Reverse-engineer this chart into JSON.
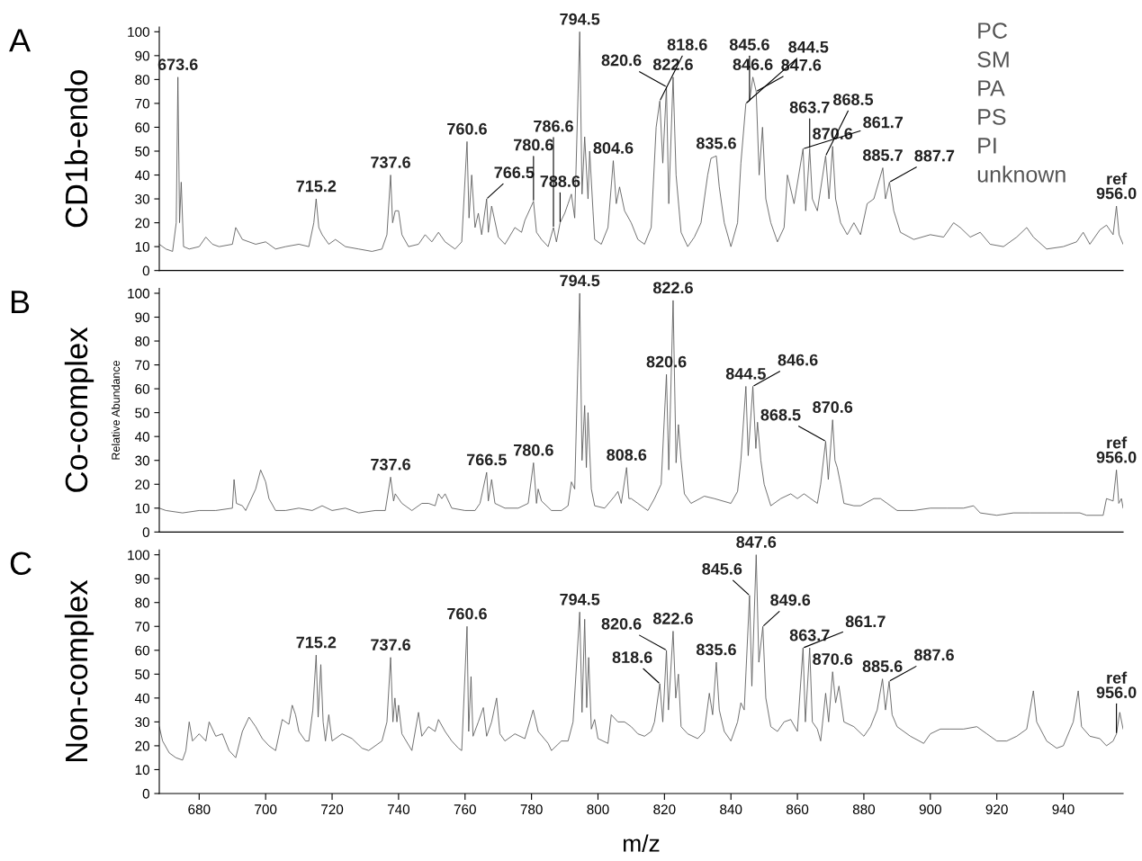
{
  "chart_data": [
    {
      "type": "line",
      "title": "A",
      "xlim": [
        668,
        958
      ],
      "ylim": [
        0,
        102
      ],
      "xticks": [
        680,
        700,
        720,
        740,
        760,
        780,
        800,
        820,
        840,
        860,
        880,
        900,
        920,
        940
      ],
      "yticks": [
        0,
        10,
        20,
        30,
        40,
        50,
        60,
        70,
        80,
        90,
        100
      ],
      "tick_labels": "y",
      "grid": false,
      "series": [
        {
          "color": "#555555",
          "x": [
            668,
            670,
            672,
            673.1,
            673.6,
            674.1,
            674.6,
            675.3,
            677,
            680,
            682,
            684,
            686,
            690,
            691,
            693,
            697,
            700,
            703,
            706,
            710,
            713,
            714.5,
            715.2,
            716,
            717,
            719,
            721,
            724,
            728,
            732,
            735,
            736.5,
            737.6,
            738.2,
            739,
            740,
            741,
            743,
            746,
            748,
            750,
            752,
            754,
            757,
            759,
            760.6,
            761.2,
            762,
            763,
            764,
            765,
            766.5,
            767,
            768,
            770,
            772,
            775,
            777,
            778,
            780.6,
            781.5,
            783,
            785,
            786.6,
            787.5,
            788.6,
            790,
            791,
            792,
            793,
            794.5,
            795.2,
            796,
            797,
            797.5,
            798.5,
            799,
            801,
            803,
            804.6,
            805.5,
            806.5,
            808,
            810,
            812,
            814,
            816,
            817.5,
            818.6,
            819.5,
            820.6,
            821.3,
            822.6,
            823.5,
            825,
            827,
            829,
            831,
            833,
            834,
            835.6,
            836.5,
            838,
            840,
            842,
            843,
            844.5,
            845.6,
            846.6,
            847.6,
            848.5,
            849.5,
            850.5,
            852,
            854,
            856,
            857,
            859,
            861.7,
            862.5,
            863.7,
            864.5,
            866,
            868.5,
            869.5,
            870.6,
            871.5,
            873,
            875,
            877,
            879,
            881,
            883,
            885.7,
            886.5,
            887.7,
            889,
            891,
            895,
            900,
            904,
            907,
            909,
            912,
            915,
            918,
            922,
            926,
            929,
            931,
            935,
            940,
            944,
            946,
            948,
            951,
            953,
            955,
            956,
            956.8,
            958
          ],
          "values": [
            11,
            9,
            8,
            20,
            81,
            20,
            37,
            10,
            9,
            10,
            14,
            11,
            10,
            11,
            18,
            13,
            11,
            12,
            9,
            10,
            11,
            10,
            20,
            30,
            18,
            15,
            11,
            13,
            10,
            9,
            8,
            9,
            15,
            40,
            20,
            25,
            25,
            15,
            10,
            11,
            15,
            12,
            16,
            12,
            9,
            12,
            54,
            22,
            40,
            18,
            24,
            15,
            30,
            16,
            27,
            14,
            11,
            18,
            16,
            21,
            29,
            16,
            13,
            10,
            18,
            12,
            20,
            24,
            28,
            32,
            22,
            100,
            32,
            56,
            30,
            50,
            25,
            13,
            11,
            18,
            46,
            28,
            35,
            25,
            20,
            13,
            11,
            18,
            60,
            71,
            45,
            77,
            28,
            81,
            40,
            16,
            10,
            14,
            20,
            40,
            47,
            48,
            35,
            20,
            10,
            20,
            45,
            70,
            71,
            81,
            75,
            40,
            60,
            30,
            20,
            12,
            18,
            40,
            28,
            51,
            25,
            51,
            30,
            25,
            48,
            30,
            52,
            30,
            20,
            15,
            20,
            15,
            28,
            30,
            43,
            30,
            37,
            25,
            16,
            13,
            15,
            14,
            20,
            18,
            14,
            16,
            11,
            10,
            14,
            18,
            14,
            9,
            10,
            12,
            16,
            11,
            17,
            19,
            15,
            27,
            15,
            11
          ]
        }
      ],
      "annotations": [
        "CD1b-endo",
        "PC",
        "SM",
        "PA",
        "PS",
        "PI",
        "unknown",
        {
          "text": "794.5",
          "x": 794.5,
          "y": 100
        },
        {
          "text": "822.6",
          "x": 822.6,
          "y": 81
        },
        {
          "text": "846.6",
          "x": 846.6,
          "y": 81
        },
        {
          "text": "673.6",
          "x": 673.6,
          "y": 81
        },
        {
          "text": "820.6",
          "x": 820.6,
          "y": 77
        },
        {
          "text": "847.6",
          "x": 847.6,
          "y": 75
        },
        {
          "text": "845.6",
          "x": 845.6,
          "y": 71
        },
        {
          "text": "818.6",
          "x": 818.6,
          "y": 71
        },
        {
          "text": "844.5",
          "x": 844.5,
          "y": 70
        },
        {
          "text": "760.6",
          "x": 760.6,
          "y": 54
        },
        {
          "text": "870.6",
          "x": 870.6,
          "y": 52
        },
        {
          "text": "861.7",
          "x": 861.7,
          "y": 51
        },
        {
          "text": "863.7",
          "x": 863.7,
          "y": 51
        },
        {
          "text": "835.6",
          "x": 835.6,
          "y": 48
        },
        {
          "text": "868.5",
          "x": 868.5,
          "y": 48
        },
        {
          "text": "804.6",
          "x": 804.6,
          "y": 46
        },
        {
          "text": "885.7",
          "x": 885.7,
          "y": 43
        },
        {
          "text": "737.6",
          "x": 737.6,
          "y": 40
        },
        {
          "text": "887.7",
          "x": 887.7,
          "y": 37
        },
        {
          "text": "715.2",
          "x": 715.2,
          "y": 30
        },
        {
          "text": "766.5",
          "x": 766.5,
          "y": 30
        },
        {
          "text": "780.6",
          "x": 780.6,
          "y": 29
        },
        {
          "text": "ref\n956.0",
          "x": 956.0,
          "y": 27
        },
        {
          "text": "788.6",
          "x": 788.6,
          "y": 20
        },
        {
          "text": "786.6",
          "x": 786.6,
          "y": 18
        }
      ]
    },
    {
      "type": "line",
      "title": "B",
      "ylabel": "Relative Abundance",
      "xlim": [
        668,
        958
      ],
      "ylim": [
        0,
        102
      ],
      "xticks": [
        680,
        700,
        720,
        740,
        760,
        780,
        800,
        820,
        840,
        860,
        880,
        900,
        920,
        940
      ],
      "yticks": [
        0,
        10,
        20,
        30,
        40,
        50,
        60,
        70,
        80,
        90,
        100
      ],
      "tick_labels": "y",
      "grid": false,
      "series": [
        {
          "color": "#555555",
          "x": [
            668,
            670,
            675,
            680,
            685,
            690,
            690.5,
            691.2,
            693,
            694,
            697,
            698.5,
            700,
            701,
            703,
            706,
            710,
            714,
            717,
            720,
            724,
            728,
            733,
            736,
            737.6,
            738.5,
            739,
            741,
            744,
            747,
            749,
            751,
            752,
            753,
            754,
            756,
            760,
            763,
            764.5,
            766.5,
            767,
            768,
            769,
            772,
            776,
            779,
            780.6,
            781.5,
            782,
            783,
            786,
            789,
            791,
            792,
            793,
            794.5,
            795.2,
            796,
            796.5,
            797,
            798,
            799,
            802,
            805,
            806,
            807,
            808.6,
            809.3,
            810,
            812,
            815,
            817,
            819,
            820.6,
            821.3,
            822.6,
            823.5,
            824.2,
            825,
            826,
            828,
            832,
            835,
            840,
            842,
            843,
            844.5,
            845.2,
            846.6,
            847.5,
            848,
            849,
            850,
            852,
            855,
            858,
            860,
            862,
            866,
            867,
            868.5,
            869.3,
            870.6,
            871.3,
            872,
            873,
            874,
            877,
            879,
            883,
            885,
            887,
            890,
            895,
            900,
            905,
            910,
            913,
            915,
            920,
            925,
            930,
            935,
            940,
            945,
            947,
            952,
            953,
            955,
            956,
            956.7,
            957.5,
            958
          ],
          "values": [
            10,
            9,
            8,
            9,
            9,
            10,
            22,
            12,
            11,
            9,
            18,
            26,
            21,
            14,
            9,
            9,
            10,
            9,
            11,
            9,
            10,
            8,
            9,
            9,
            23,
            13,
            16,
            12,
            9,
            12,
            12,
            11,
            16,
            14,
            16,
            10,
            9,
            9,
            12,
            25,
            13,
            22,
            12,
            10,
            10,
            12,
            29,
            12,
            18,
            13,
            9,
            9,
            11,
            21,
            18,
            100,
            30,
            53,
            27,
            50,
            18,
            11,
            10,
            15,
            17,
            12,
            27,
            14,
            14,
            12,
            9,
            14,
            20,
            66,
            26,
            97,
            29,
            45,
            30,
            16,
            12,
            15,
            14,
            12,
            17,
            30,
            61,
            32,
            61,
            35,
            46,
            30,
            20,
            11,
            14,
            16,
            14,
            16,
            12,
            20,
            38,
            22,
            47,
            30,
            27,
            20,
            12,
            11,
            11,
            14,
            14,
            12,
            9,
            9,
            10,
            10,
            10,
            11,
            8,
            7,
            8,
            8,
            8,
            8,
            8,
            7,
            7,
            14,
            13,
            26,
            12,
            14,
            10
          ]
        }
      ],
      "annotations": [
        "Co-complex",
        {
          "text": "794.5",
          "x": 794.5,
          "y": 100
        },
        {
          "text": "822.6",
          "x": 822.6,
          "y": 97
        },
        {
          "text": "820.6",
          "x": 820.6,
          "y": 66
        },
        {
          "text": "844.5",
          "x": 844.5,
          "y": 61
        },
        {
          "text": "846.6",
          "x": 846.6,
          "y": 61
        },
        {
          "text": "870.6",
          "x": 870.6,
          "y": 47
        },
        {
          "text": "868.5",
          "x": 868.5,
          "y": 38
        },
        {
          "text": "780.6",
          "x": 780.6,
          "y": 29
        },
        {
          "text": "808.6",
          "x": 808.6,
          "y": 27
        },
        {
          "text": "ref\n956.0",
          "x": 956.0,
          "y": 26
        },
        {
          "text": "766.5",
          "x": 766.5,
          "y": 25
        },
        {
          "text": "737.6",
          "x": 737.6,
          "y": 23
        }
      ]
    },
    {
      "type": "line",
      "title": "C",
      "xlabel": "m/z",
      "xlim": [
        668,
        958
      ],
      "ylim": [
        0,
        102
      ],
      "xticks": [
        680,
        700,
        720,
        740,
        760,
        780,
        800,
        820,
        840,
        860,
        880,
        900,
        920,
        940
      ],
      "yticks": [
        0,
        10,
        20,
        30,
        40,
        50,
        60,
        70,
        80,
        90,
        100
      ],
      "grid": false,
      "series": [
        {
          "color": "#555555",
          "x": [
            668,
            669,
            671,
            673,
            675,
            676,
            677,
            678,
            680,
            682,
            683,
            685,
            687,
            689,
            691,
            693,
            695,
            697,
            699,
            701,
            703,
            705,
            707,
            708,
            709,
            710,
            712,
            713,
            714.2,
            715.2,
            715.8,
            716.6,
            717.3,
            718,
            719,
            720,
            723,
            726,
            729,
            731,
            733,
            735,
            736.5,
            737.6,
            738.3,
            738.9,
            739.5,
            740,
            741,
            744,
            746,
            747,
            749,
            751,
            752,
            754,
            756,
            758,
            759,
            760.6,
            761.1,
            761.8,
            762.4,
            764,
            765.5,
            766.5,
            768,
            769.5,
            770.5,
            772,
            775,
            778,
            780.5,
            782,
            785,
            786,
            789,
            791,
            792.5,
            794.5,
            795.2,
            796,
            796.6,
            797.2,
            798,
            799,
            800,
            803,
            804,
            806,
            808,
            810,
            812,
            814,
            816,
            817,
            818.6,
            819.5,
            820.6,
            821.2,
            822.6,
            823.4,
            824.2,
            825,
            827,
            830,
            832,
            833.5,
            834.5,
            835.6,
            836.5,
            838,
            840,
            842,
            843,
            844,
            845.6,
            846.3,
            847.6,
            848.4,
            849.6,
            850.5,
            852,
            854,
            856,
            858,
            860,
            861.7,
            862.4,
            863.7,
            864.5,
            866,
            867,
            868.5,
            869.4,
            870.6,
            871.5,
            872.5,
            874,
            877,
            880,
            882,
            884,
            885.6,
            886.5,
            887.6,
            888.5,
            890,
            894,
            898,
            900,
            903,
            906,
            910,
            914,
            917,
            920,
            923,
            926,
            929,
            931,
            932,
            935,
            938,
            940,
            943,
            944.5,
            945.5,
            948,
            951,
            953,
            955,
            956,
            957,
            958
          ],
          "values": [
            28,
            22,
            17,
            15,
            14,
            18,
            30,
            22,
            25,
            22,
            30,
            24,
            25,
            18,
            15,
            26,
            32,
            28,
            23,
            20,
            18,
            31,
            29,
            37,
            33,
            26,
            22,
            22,
            35,
            58,
            32,
            54,
            30,
            22,
            33,
            22,
            25,
            23,
            19,
            18,
            20,
            22,
            30,
            57,
            30,
            40,
            30,
            37,
            25,
            18,
            34,
            24,
            28,
            26,
            31,
            26,
            22,
            19,
            18,
            70,
            26,
            49,
            24,
            30,
            36,
            24,
            30,
            40,
            25,
            22,
            25,
            23,
            35,
            26,
            21,
            18,
            22,
            22,
            30,
            76,
            34,
            73,
            36,
            57,
            27,
            31,
            23,
            21,
            33,
            30,
            30,
            28,
            25,
            24,
            26,
            30,
            46,
            30,
            60,
            35,
            68,
            40,
            50,
            28,
            25,
            23,
            26,
            42,
            33,
            55,
            35,
            26,
            22,
            30,
            38,
            35,
            83,
            45,
            100,
            55,
            70,
            40,
            28,
            26,
            30,
            31,
            26,
            61,
            30,
            61,
            30,
            27,
            22,
            42,
            30,
            51,
            38,
            45,
            30,
            28,
            24,
            28,
            35,
            48,
            35,
            47,
            33,
            28,
            24,
            21,
            25,
            27,
            27,
            27,
            28,
            25,
            22,
            22,
            24,
            27,
            43,
            30,
            22,
            19,
            20,
            30,
            43,
            28,
            24,
            23,
            20,
            22,
            25,
            34,
            27
          ]
        }
      ],
      "annotations": [
        "Non-complex",
        {
          "text": "847.6",
          "x": 847.6,
          "y": 100
        },
        {
          "text": "845.6",
          "x": 845.6,
          "y": 83
        },
        {
          "text": "794.5",
          "x": 794.5,
          "y": 76
        },
        {
          "text": "760.6",
          "x": 760.6,
          "y": 70
        },
        {
          "text": "849.6",
          "x": 849.6,
          "y": 70
        },
        {
          "text": "822.6",
          "x": 822.6,
          "y": 68
        },
        {
          "text": "863.7",
          "x": 863.7,
          "y": 61
        },
        {
          "text": "861.7",
          "x": 861.7,
          "y": 61
        },
        {
          "text": "820.6",
          "x": 820.6,
          "y": 60
        },
        {
          "text": "715.2",
          "x": 715.2,
          "y": 58
        },
        {
          "text": "737.6",
          "x": 737.6,
          "y": 57
        },
        {
          "text": "835.6",
          "x": 835.6,
          "y": 55
        },
        {
          "text": "870.6",
          "x": 870.6,
          "y": 51
        },
        {
          "text": "885.6",
          "x": 885.6,
          "y": 48
        },
        {
          "text": "887.6",
          "x": 887.6,
          "y": 47
        },
        {
          "text": "818.6",
          "x": 818.6,
          "y": 46
        },
        {
          "text": "ref\n956.0",
          "x": 956.0,
          "y": 25
        }
      ]
    }
  ]
}
